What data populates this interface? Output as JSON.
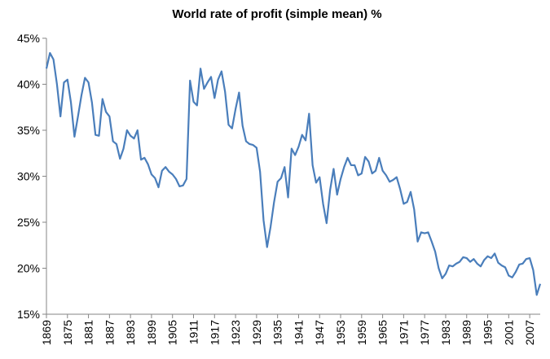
{
  "chart_data": {
    "type": "line",
    "title": "World rate of profit (simple mean) %",
    "x": [
      1869,
      1870,
      1871,
      1872,
      1873,
      1874,
      1875,
      1876,
      1877,
      1878,
      1879,
      1880,
      1881,
      1882,
      1883,
      1884,
      1885,
      1886,
      1887,
      1888,
      1889,
      1890,
      1891,
      1892,
      1893,
      1894,
      1895,
      1896,
      1897,
      1898,
      1899,
      1900,
      1901,
      1902,
      1903,
      1904,
      1905,
      1906,
      1907,
      1908,
      1909,
      1910,
      1911,
      1912,
      1913,
      1914,
      1915,
      1916,
      1917,
      1918,
      1919,
      1920,
      1921,
      1922,
      1923,
      1924,
      1925,
      1926,
      1927,
      1928,
      1929,
      1930,
      1931,
      1932,
      1933,
      1934,
      1935,
      1936,
      1937,
      1938,
      1939,
      1940,
      1941,
      1942,
      1943,
      1944,
      1945,
      1946,
      1947,
      1948,
      1949,
      1950,
      1951,
      1952,
      1953,
      1954,
      1955,
      1956,
      1957,
      1958,
      1959,
      1960,
      1961,
      1962,
      1963,
      1964,
      1965,
      1966,
      1967,
      1968,
      1969,
      1970,
      1971,
      1972,
      1973,
      1974,
      1975,
      1976,
      1977,
      1978,
      1979,
      1980,
      1981,
      1982,
      1983,
      1984,
      1985,
      1986,
      1987,
      1988,
      1989,
      1990,
      1991,
      1992,
      1993,
      1994,
      1995,
      1996,
      1997,
      1998,
      1999,
      2000,
      2001,
      2002,
      2003,
      2004,
      2005,
      2006,
      2007,
      2008,
      2009,
      2010
    ],
    "series": [
      {
        "color": "#4a7ebb",
        "values": [
          41.7,
          43.4,
          42.7,
          40.0,
          36.5,
          40.2,
          40.5,
          38.0,
          34.3,
          36.5,
          38.8,
          40.7,
          40.2,
          38.0,
          34.5,
          34.4,
          38.4,
          37.0,
          36.5,
          33.8,
          33.5,
          31.9,
          33.0,
          35.0,
          34.4,
          34.1,
          35.0,
          31.8,
          32.0,
          31.3,
          30.2,
          29.8,
          28.8,
          30.6,
          31.0,
          30.5,
          30.2,
          29.7,
          28.9,
          29.0,
          29.7,
          40.4,
          38.1,
          37.7,
          41.7,
          39.5,
          40.2,
          40.8,
          38.5,
          40.5,
          41.4,
          39.2,
          35.6,
          35.2,
          37.3,
          39.1,
          35.5,
          33.8,
          33.5,
          33.4,
          33.1,
          30.5,
          25.2,
          22.3,
          24.5,
          27.2,
          29.4,
          29.8,
          31.0,
          27.7,
          33.0,
          32.3,
          33.2,
          34.5,
          33.9,
          36.8,
          31.2,
          29.3,
          29.9,
          27.0,
          24.9,
          28.5,
          30.8,
          28.0,
          29.7,
          31.0,
          32.0,
          31.2,
          31.2,
          30.1,
          30.3,
          32.1,
          31.6,
          30.3,
          30.6,
          32.0,
          30.6,
          30.1,
          29.4,
          29.6,
          29.9,
          28.6,
          27.0,
          27.2,
          28.3,
          26.4,
          22.9,
          23.9,
          23.8,
          23.9,
          22.9,
          21.8,
          20.0,
          18.9,
          19.4,
          20.3,
          20.2,
          20.5,
          20.7,
          21.2,
          21.1,
          20.7,
          21.0,
          20.5,
          20.2,
          20.9,
          21.3,
          21.1,
          21.6,
          20.6,
          20.3,
          20.1,
          19.2,
          19.0,
          19.6,
          20.4,
          20.5,
          21.0,
          21.1,
          19.8,
          17.1,
          18.3
        ]
      }
    ],
    "xlim": [
      1869,
      2010
    ],
    "xticks": [
      1869,
      1875,
      1881,
      1887,
      1893,
      1899,
      1905,
      1911,
      1917,
      1923,
      1929,
      1935,
      1941,
      1947,
      1953,
      1959,
      1965,
      1971,
      1977,
      1983,
      1989,
      1995,
      2001,
      2007
    ],
    "ylim": [
      15,
      45
    ],
    "yticks": [
      {
        "value": 15,
        "label": "15%"
      },
      {
        "value": 20,
        "label": "20%"
      },
      {
        "value": 25,
        "label": "25%"
      },
      {
        "value": 30,
        "label": "30%"
      },
      {
        "value": 35,
        "label": "35%"
      },
      {
        "value": 40,
        "label": "40%"
      },
      {
        "value": 45,
        "label": "45%"
      }
    ]
  }
}
